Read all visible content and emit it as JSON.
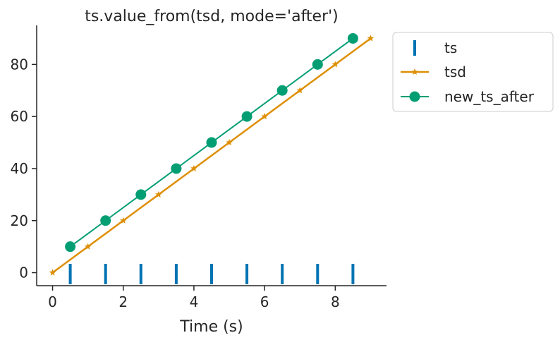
{
  "chart_data": {
    "type": "line",
    "title": "ts.value_from(tsd, mode='after')",
    "xlabel": "Time (s)",
    "ylabel": "",
    "xlim": [
      -0.45,
      9.45
    ],
    "ylim": [
      -5,
      95
    ],
    "xticks": [
      0,
      2,
      4,
      6,
      8
    ],
    "yticks": [
      0,
      20,
      40,
      60,
      80
    ],
    "xtick_labels": [
      "0",
      "2",
      "4",
      "6",
      "8"
    ],
    "ytick_labels": [
      "0",
      "20",
      "40",
      "60",
      "80"
    ],
    "grid": false,
    "legend_position": "outside-right-top",
    "series": [
      {
        "name": "ts",
        "kind": "event",
        "color": "#0173b2",
        "x": [
          0.5,
          1.5,
          2.5,
          3.5,
          4.5,
          5.5,
          6.5,
          7.5,
          8.5
        ]
      },
      {
        "name": "tsd",
        "kind": "line",
        "marker": "star",
        "color": "#de8f05",
        "x": [
          0,
          1,
          2,
          3,
          4,
          5,
          6,
          7,
          8,
          9
        ],
        "y": [
          0,
          10,
          20,
          30,
          40,
          50,
          60,
          70,
          80,
          90
        ]
      },
      {
        "name": "new_ts_after",
        "kind": "line",
        "marker": "circle",
        "color": "#029e73",
        "x": [
          0.5,
          1.5,
          2.5,
          3.5,
          4.5,
          5.5,
          6.5,
          7.5,
          8.5
        ],
        "y": [
          10,
          20,
          30,
          40,
          50,
          60,
          70,
          80,
          90
        ]
      }
    ]
  }
}
